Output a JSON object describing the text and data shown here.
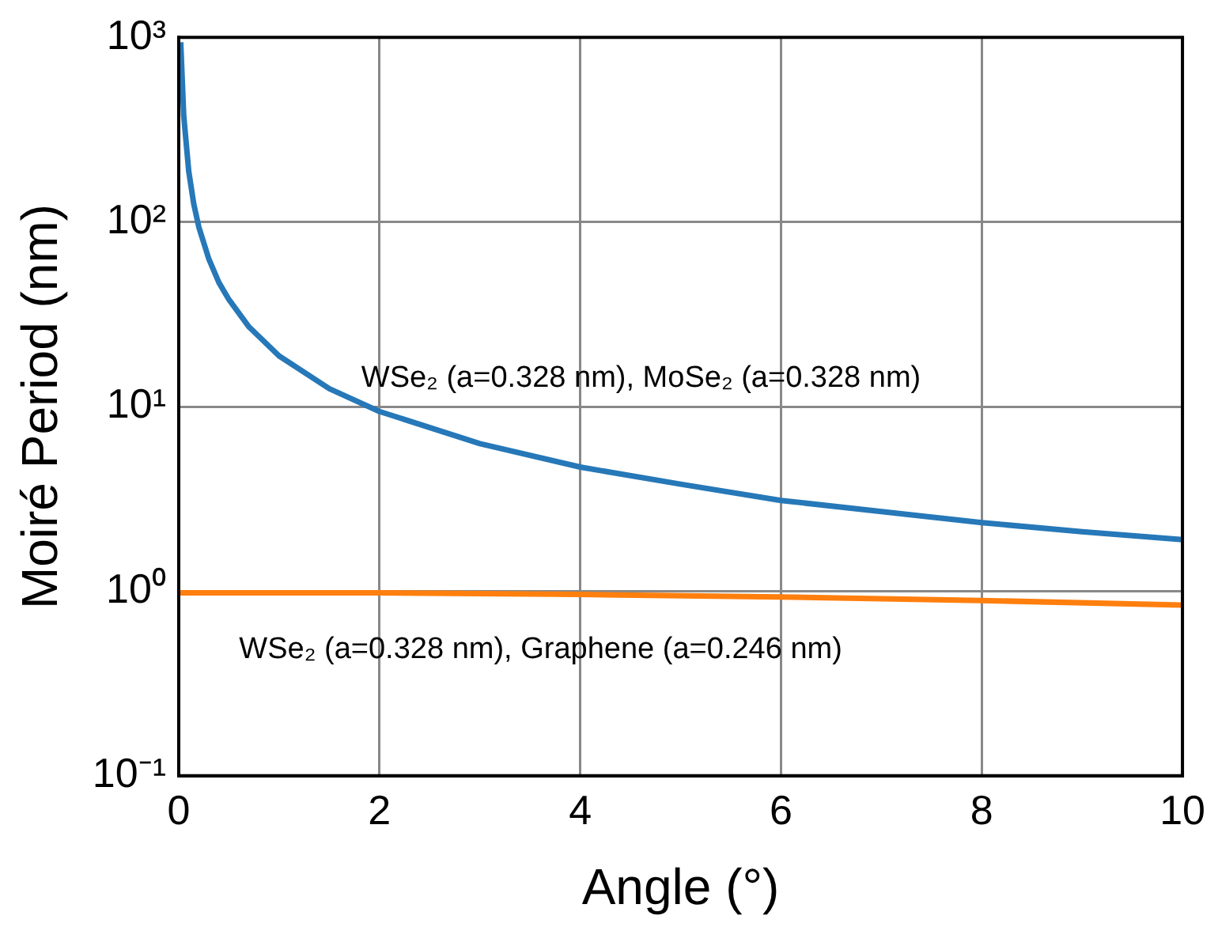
{
  "chart_data": {
    "type": "line",
    "xlabel": "Angle (°)",
    "ylabel": "Moiré Period (nm)",
    "log": "y",
    "grid": true,
    "legend": false,
    "marker": "none",
    "line_style": "solid",
    "xlim": [
      0,
      10
    ],
    "xticks": [
      0,
      2,
      4,
      6,
      8,
      10
    ],
    "ylim": [
      0.1,
      1000
    ],
    "yticks": [
      {
        "value": 0.1,
        "label": "10⁻¹"
      },
      {
        "value": 1,
        "label": "10⁰"
      },
      {
        "value": 10,
        "label": "10¹"
      },
      {
        "value": 100,
        "label": "10²"
      },
      {
        "value": 1000,
        "label": "10³"
      }
    ],
    "series": [
      {
        "name": "WSe₂ (a=0.328 nm), MoSe₂ (a=0.328 nm)",
        "color": "#2678b8",
        "x": [
          0.02,
          0.05,
          0.1,
          0.15,
          0.2,
          0.3,
          0.4,
          0.5,
          0.7,
          1,
          1.5,
          2,
          3,
          4,
          5,
          6,
          7,
          8,
          9,
          10
        ],
        "values": [
          940,
          376,
          188,
          125,
          94,
          63,
          47,
          38,
          27,
          18.8,
          12.5,
          9.4,
          6.3,
          4.7,
          3.8,
          3.1,
          2.7,
          2.35,
          2.1,
          1.9
        ]
      },
      {
        "name": "WSe₂ (a=0.328 nm), Graphene (a=0.246 nm)",
        "color": "#ff7f0e",
        "x": [
          0,
          2,
          4,
          6,
          8,
          10
        ],
        "values": [
          0.98,
          0.98,
          0.96,
          0.93,
          0.89,
          0.84
        ]
      }
    ]
  }
}
